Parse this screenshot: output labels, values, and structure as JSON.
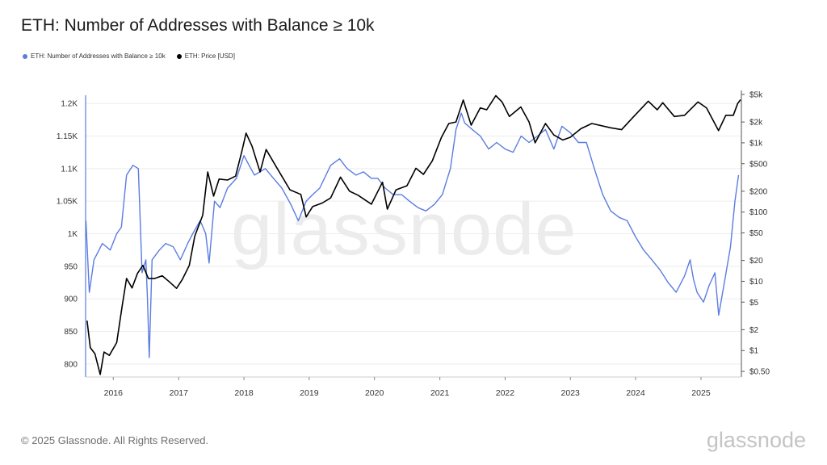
{
  "title": "ETH: Number of Addresses with Balance ≥ 10k",
  "legend": {
    "series1": "ETH: Number of Addresses with Balance ≥ 10k",
    "series2": "ETH: Price [USD]"
  },
  "watermark": "glassnode",
  "footer": "© 2025 Glassnode. All Rights Reserved.",
  "brand": "glassnode",
  "colors": {
    "addresses": "#5b7ce0",
    "price": "#000000",
    "grid": "#ececec"
  },
  "chart_data": {
    "type": "line",
    "x_ticks": [
      "2016",
      "2017",
      "2018",
      "2019",
      "2020",
      "2021",
      "2022",
      "2023",
      "2024",
      "2025"
    ],
    "x_range": [
      "2015-07-30",
      "2025-08-15"
    ],
    "y_left": {
      "range": [
        780,
        1220
      ],
      "ticks": [
        800,
        850,
        900,
        950,
        1000,
        1050,
        1100,
        1150,
        1200
      ],
      "tick_labels": [
        "800",
        "850",
        "900",
        "950",
        "1K",
        "1.05K",
        "1.1K",
        "1.15K",
        "1.2K"
      ]
    },
    "y_right": {
      "scale": "log",
      "ticks": [
        0.5,
        1,
        2,
        5,
        10,
        20,
        50,
        100,
        200,
        500,
        1000,
        2000,
        5000
      ],
      "tick_labels": [
        "$0.50",
        "$1",
        "$2",
        "$5",
        "$10",
        "$20",
        "$50",
        "$100",
        "$200",
        "$500",
        "$1k",
        "$2k",
        "$5k"
      ]
    },
    "grid": true,
    "legend_position": "top-left",
    "series": [
      {
        "name": "ETH: Number of Addresses with Balance ≥ 10k",
        "axis": "left",
        "points": [
          [
            "2015-08-01",
            1020
          ],
          [
            "2015-08-20",
            910
          ],
          [
            "2015-09-15",
            960
          ],
          [
            "2015-11-01",
            985
          ],
          [
            "2015-12-15",
            975
          ],
          [
            "2016-01-20",
            1000
          ],
          [
            "2016-02-15",
            1010
          ],
          [
            "2016-03-15",
            1090
          ],
          [
            "2016-04-20",
            1105
          ],
          [
            "2016-05-20",
            1100
          ],
          [
            "2016-06-10",
            940
          ],
          [
            "2016-07-01",
            960
          ],
          [
            "2016-07-10",
            900
          ],
          [
            "2016-07-20",
            810
          ],
          [
            "2016-08-05",
            960
          ],
          [
            "2016-09-15",
            975
          ],
          [
            "2016-10-20",
            985
          ],
          [
            "2016-12-01",
            980
          ],
          [
            "2017-01-10",
            960
          ],
          [
            "2017-02-20",
            985
          ],
          [
            "2017-03-20",
            1000
          ],
          [
            "2017-05-01",
            1020
          ],
          [
            "2017-06-01",
            1000
          ],
          [
            "2017-06-20",
            955
          ],
          [
            "2017-07-20",
            1050
          ],
          [
            "2017-08-20",
            1040
          ],
          [
            "2017-10-01",
            1070
          ],
          [
            "2017-11-20",
            1085
          ],
          [
            "2018-01-01",
            1120
          ],
          [
            "2018-01-20",
            1110
          ],
          [
            "2018-03-01",
            1090
          ],
          [
            "2018-05-01",
            1100
          ],
          [
            "2018-06-15",
            1085
          ],
          [
            "2018-08-01",
            1070
          ],
          [
            "2018-09-20",
            1045
          ],
          [
            "2018-11-01",
            1020
          ],
          [
            "2018-12-15",
            1050
          ],
          [
            "2019-01-20",
            1060
          ],
          [
            "2019-03-01",
            1070
          ],
          [
            "2019-05-01",
            1105
          ],
          [
            "2019-06-20",
            1115
          ],
          [
            "2019-08-01",
            1100
          ],
          [
            "2019-09-20",
            1090
          ],
          [
            "2019-11-01",
            1095
          ],
          [
            "2019-12-15",
            1085
          ],
          [
            "2020-01-20",
            1085
          ],
          [
            "2020-03-01",
            1070
          ],
          [
            "2020-04-15",
            1060
          ],
          [
            "2020-06-01",
            1060
          ],
          [
            "2020-07-15",
            1050
          ],
          [
            "2020-09-01",
            1040
          ],
          [
            "2020-10-15",
            1035
          ],
          [
            "2020-12-01",
            1045
          ],
          [
            "2021-01-15",
            1060
          ],
          [
            "2021-03-01",
            1100
          ],
          [
            "2021-04-01",
            1160
          ],
          [
            "2021-05-01",
            1185
          ],
          [
            "2021-05-20",
            1170
          ],
          [
            "2021-07-01",
            1160
          ],
          [
            "2021-08-15",
            1150
          ],
          [
            "2021-10-01",
            1130
          ],
          [
            "2021-11-15",
            1140
          ],
          [
            "2022-01-01",
            1130
          ],
          [
            "2022-02-15",
            1125
          ],
          [
            "2022-04-01",
            1150
          ],
          [
            "2022-05-15",
            1140
          ],
          [
            "2022-07-01",
            1150
          ],
          [
            "2022-08-15",
            1160
          ],
          [
            "2022-10-01",
            1130
          ],
          [
            "2022-11-15",
            1165
          ],
          [
            "2023-01-01",
            1155
          ],
          [
            "2023-02-15",
            1140
          ],
          [
            "2023-04-01",
            1140
          ],
          [
            "2023-05-15",
            1100
          ],
          [
            "2023-07-01",
            1060
          ],
          [
            "2023-08-15",
            1035
          ],
          [
            "2023-10-01",
            1025
          ],
          [
            "2023-11-15",
            1020
          ],
          [
            "2024-01-01",
            995
          ],
          [
            "2024-02-15",
            975
          ],
          [
            "2024-04-01",
            960
          ],
          [
            "2024-05-15",
            945
          ],
          [
            "2024-07-01",
            925
          ],
          [
            "2024-08-15",
            910
          ],
          [
            "2024-10-01",
            935
          ],
          [
            "2024-11-01",
            960
          ],
          [
            "2024-11-20",
            930
          ],
          [
            "2024-12-10",
            910
          ],
          [
            "2025-01-15",
            895
          ],
          [
            "2025-02-15",
            920
          ],
          [
            "2025-03-20",
            940
          ],
          [
            "2025-04-10",
            875
          ],
          [
            "2025-05-15",
            930
          ],
          [
            "2025-06-15",
            980
          ],
          [
            "2025-07-10",
            1050
          ],
          [
            "2025-07-30",
            1090
          ]
        ]
      },
      {
        "name": "ETH: Price [USD]",
        "axis": "right",
        "points": [
          [
            "2015-08-07",
            2.7
          ],
          [
            "2015-08-25",
            1.1
          ],
          [
            "2015-09-20",
            0.9
          ],
          [
            "2015-10-20",
            0.45
          ],
          [
            "2015-11-10",
            0.95
          ],
          [
            "2015-12-10",
            0.85
          ],
          [
            "2016-01-20",
            1.3
          ],
          [
            "2016-02-20",
            4.5
          ],
          [
            "2016-03-15",
            11
          ],
          [
            "2016-04-15",
            8
          ],
          [
            "2016-05-15",
            13
          ],
          [
            "2016-06-15",
            17
          ],
          [
            "2016-07-15",
            11
          ],
          [
            "2016-08-20",
            11
          ],
          [
            "2016-10-01",
            12
          ],
          [
            "2016-11-10",
            9.8
          ],
          [
            "2016-12-20",
            7.9
          ],
          [
            "2017-01-20",
            10.5
          ],
          [
            "2017-03-01",
            17
          ],
          [
            "2017-04-01",
            45
          ],
          [
            "2017-05-15",
            90
          ],
          [
            "2017-06-12",
            380
          ],
          [
            "2017-07-15",
            170
          ],
          [
            "2017-08-15",
            300
          ],
          [
            "2017-10-01",
            290
          ],
          [
            "2017-11-15",
            330
          ],
          [
            "2017-12-20",
            750
          ],
          [
            "2018-01-13",
            1380
          ],
          [
            "2018-02-15",
            900
          ],
          [
            "2018-04-01",
            380
          ],
          [
            "2018-05-05",
            800
          ],
          [
            "2018-07-01",
            450
          ],
          [
            "2018-09-15",
            210
          ],
          [
            "2018-11-15",
            180
          ],
          [
            "2018-12-15",
            85
          ],
          [
            "2019-01-20",
            120
          ],
          [
            "2019-03-15",
            135
          ],
          [
            "2019-05-01",
            160
          ],
          [
            "2019-06-25",
            320
          ],
          [
            "2019-08-15",
            200
          ],
          [
            "2019-10-01",
            175
          ],
          [
            "2019-12-15",
            130
          ],
          [
            "2020-02-15",
            270
          ],
          [
            "2020-03-13",
            110
          ],
          [
            "2020-05-01",
            210
          ],
          [
            "2020-07-01",
            240
          ],
          [
            "2020-08-20",
            430
          ],
          [
            "2020-10-01",
            350
          ],
          [
            "2020-11-20",
            550
          ],
          [
            "2021-01-10",
            1200
          ],
          [
            "2021-02-20",
            1900
          ],
          [
            "2021-04-01",
            2000
          ],
          [
            "2021-05-12",
            4150
          ],
          [
            "2021-06-25",
            1800
          ],
          [
            "2021-08-15",
            3200
          ],
          [
            "2021-09-20",
            3000
          ],
          [
            "2021-11-10",
            4800
          ],
          [
            "2021-12-15",
            3900
          ],
          [
            "2022-01-25",
            2400
          ],
          [
            "2022-03-30",
            3300
          ],
          [
            "2022-05-15",
            2000
          ],
          [
            "2022-06-18",
            1000
          ],
          [
            "2022-08-15",
            1900
          ],
          [
            "2022-10-01",
            1300
          ],
          [
            "2022-11-20",
            1100
          ],
          [
            "2022-12-31",
            1200
          ],
          [
            "2023-03-01",
            1600
          ],
          [
            "2023-05-01",
            1900
          ],
          [
            "2023-08-15",
            1650
          ],
          [
            "2023-10-15",
            1550
          ],
          [
            "2023-12-15",
            2300
          ],
          [
            "2024-03-12",
            4000
          ],
          [
            "2024-05-01",
            3000
          ],
          [
            "2024-06-01",
            3800
          ],
          [
            "2024-08-05",
            2400
          ],
          [
            "2024-10-01",
            2500
          ],
          [
            "2024-12-15",
            3900
          ],
          [
            "2025-02-01",
            3200
          ],
          [
            "2025-04-09",
            1500
          ],
          [
            "2025-05-20",
            2500
          ],
          [
            "2025-07-01",
            2500
          ],
          [
            "2025-07-25",
            3700
          ],
          [
            "2025-08-10",
            4200
          ]
        ]
      }
    ]
  }
}
